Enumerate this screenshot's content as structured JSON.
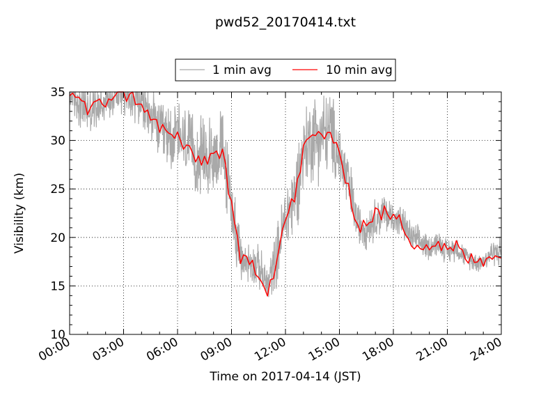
{
  "chart_data": {
    "type": "line",
    "title": "pwd52_20170414.txt",
    "xlabel": "Time on 2017-04-14 (JST)",
    "ylabel": "Visibility (km)",
    "xlim": [
      0,
      24
    ],
    "ylim": [
      10,
      35
    ],
    "grid": true,
    "legend_position": "top-center",
    "x_tick_values": [
      0,
      3,
      6,
      9,
      12,
      15,
      18,
      21,
      24
    ],
    "x_tick_labels": [
      "00:00",
      "03:00",
      "06:00",
      "09:00",
      "12:00",
      "15:00",
      "18:00",
      "21:00",
      "24:00"
    ],
    "y_tick_values": [
      10,
      15,
      20,
      25,
      30,
      35
    ],
    "y_tick_labels": [
      "10",
      "15",
      "20",
      "25",
      "30",
      "35"
    ],
    "series": [
      {
        "name": "1 min avg",
        "color": "#a9a9a9",
        "sampling": "1 min",
        "anchor_x": [
          0,
          0.5,
          1,
          1.5,
          2,
          2.5,
          3,
          3.5,
          4,
          4.5,
          5,
          5.5,
          6,
          6.5,
          7,
          7.5,
          8,
          8.5,
          9,
          9.5,
          10,
          10.5,
          11,
          11.5,
          12,
          12.5,
          13,
          13.5,
          14,
          14.5,
          15,
          15.5,
          16,
          16.5,
          17,
          17.5,
          18,
          18.5,
          19,
          19.5,
          20,
          20.5,
          21,
          21.5,
          22,
          22.5,
          23,
          23.5,
          24
        ],
        "anchor_mean": [
          35.0,
          34.0,
          33.0,
          33.5,
          34.0,
          35.0,
          35.0,
          34.5,
          34.0,
          32.5,
          31.0,
          30.5,
          30.5,
          29.5,
          28.5,
          28.0,
          28.5,
          29.0,
          23.5,
          17.5,
          17.5,
          17.0,
          15.0,
          18.0,
          22.0,
          24.0,
          29.0,
          30.5,
          30.5,
          31.0,
          28.5,
          25.5,
          21.5,
          21.0,
          22.0,
          22.5,
          22.0,
          21.5,
          20.0,
          19.5,
          19.0,
          19.5,
          18.5,
          19.0,
          18.0,
          17.5,
          17.5,
          18.5,
          18.5
        ],
        "anchor_spread": [
          2.5,
          3.0,
          3.0,
          2.5,
          2.5,
          2.5,
          3.0,
          3.5,
          3.5,
          3.5,
          3.5,
          4.0,
          4.5,
          4.5,
          4.5,
          5.0,
          5.0,
          5.0,
          4.5,
          3.0,
          2.5,
          2.5,
          2.5,
          3.5,
          4.5,
          5.0,
          5.0,
          5.5,
          5.5,
          5.0,
          4.5,
          4.0,
          2.5,
          2.5,
          2.5,
          2.5,
          2.0,
          2.0,
          1.8,
          1.8,
          1.5,
          1.5,
          1.5,
          1.5,
          1.2,
          1.2,
          1.2,
          1.5,
          2.0
        ],
        "clip": [
          12.5,
          35.0
        ]
      },
      {
        "name": "10 min avg",
        "color": "#ff0000",
        "sampling": "10 min",
        "x": [
          0,
          0.5,
          1,
          1.5,
          2,
          2.5,
          3,
          3.5,
          4,
          4.5,
          5,
          5.5,
          6,
          6.5,
          7,
          7.5,
          8,
          8.5,
          9,
          9.5,
          10,
          10.5,
          11,
          11.5,
          12,
          12.5,
          13,
          13.5,
          14,
          14.5,
          15,
          15.5,
          16,
          16.5,
          17,
          17.5,
          18,
          18.5,
          19,
          19.5,
          20,
          20.5,
          21,
          21.5,
          22,
          22.5,
          23,
          23.5,
          24
        ],
        "y": [
          35.0,
          34.5,
          33.0,
          33.5,
          34.0,
          35.0,
          34.8,
          34.5,
          34.0,
          32.0,
          31.5,
          30.5,
          30.5,
          29.0,
          28.0,
          28.0,
          28.5,
          29.0,
          23.0,
          17.5,
          17.8,
          16.5,
          14.5,
          17.5,
          22.0,
          24.0,
          29.0,
          30.5,
          30.5,
          31.0,
          28.0,
          25.5,
          21.0,
          21.5,
          22.5,
          22.5,
          22.0,
          21.5,
          19.5,
          19.5,
          19.0,
          19.5,
          18.5,
          19.0,
          18.0,
          17.5,
          17.5,
          18.5,
          18.2
        ]
      }
    ]
  }
}
